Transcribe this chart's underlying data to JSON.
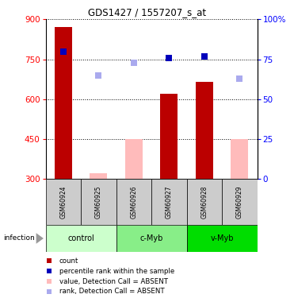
{
  "title": "GDS1427 / 1557207_s_at",
  "samples": [
    "GSM60924",
    "GSM60925",
    "GSM60926",
    "GSM60927",
    "GSM60928",
    "GSM60929"
  ],
  "counts": [
    870,
    322,
    450,
    620,
    665,
    450
  ],
  "ranks": [
    80,
    65,
    73,
    76,
    77,
    63
  ],
  "detection": [
    "P",
    "A",
    "A",
    "P",
    "P",
    "A"
  ],
  "groups": [
    {
      "label": "control",
      "indices": [
        0,
        1
      ],
      "color": "#ccffcc"
    },
    {
      "label": "c-Myb",
      "indices": [
        2,
        3
      ],
      "color": "#88ee88"
    },
    {
      "label": "v-Myb",
      "indices": [
        4,
        5
      ],
      "color": "#00dd00"
    }
  ],
  "ylim_left": [
    300,
    900
  ],
  "ylim_right": [
    0,
    100
  ],
  "yticks_left": [
    300,
    450,
    600,
    750,
    900
  ],
  "yticks_right": [
    0,
    25,
    50,
    75,
    100
  ],
  "bar_color_present": "#bb0000",
  "bar_color_absent": "#ffbbbb",
  "rank_color_present": "#0000bb",
  "rank_color_absent": "#aaaaee",
  "bar_width": 0.5,
  "legend_items": [
    {
      "color": "#bb0000",
      "label": "count"
    },
    {
      "color": "#0000bb",
      "label": "percentile rank within the sample"
    },
    {
      "color": "#ffbbbb",
      "label": "value, Detection Call = ABSENT"
    },
    {
      "color": "#aaaaee",
      "label": "rank, Detection Call = ABSENT"
    }
  ],
  "infection_label": "infection"
}
